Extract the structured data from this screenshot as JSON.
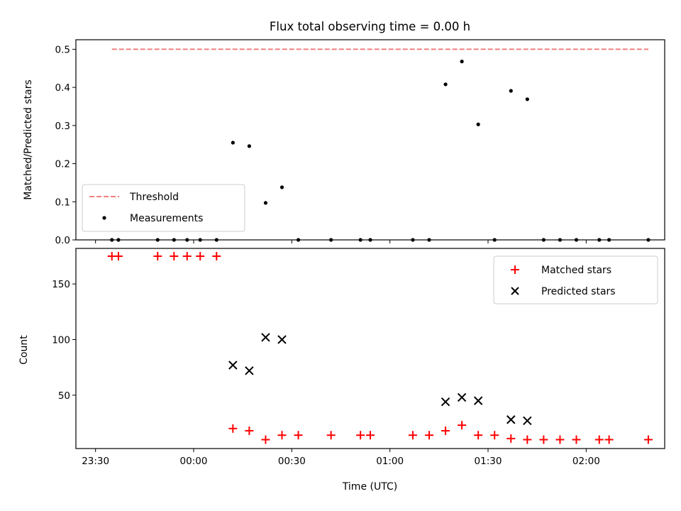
{
  "chart_data": [
    {
      "type": "scatter",
      "title": "Flux total observing time = 0.00 h",
      "xlabel": "",
      "ylabel": "Matched/Predicted stars",
      "ylim": [
        0,
        0.525
      ],
      "yticks": [
        0.0,
        0.1,
        0.2,
        0.3,
        0.4,
        0.5
      ],
      "ytick_labels": [
        "0.0",
        "0.1",
        "0.2",
        "0.3",
        "0.4",
        "0.5"
      ],
      "xaxis_unit": "minutes relative to 00:00 UTC",
      "xlim": [
        -36,
        144
      ],
      "legend": "lower-left",
      "series": [
        {
          "name": "Threshold",
          "kind": "line",
          "style": "dashed",
          "color": "#f08080",
          "x": [
            -25,
            139
          ],
          "y": [
            0.5,
            0.5
          ]
        },
        {
          "name": "Measurements",
          "kind": "scatter",
          "color": "#000000",
          "x": [
            -25,
            -23,
            -11,
            -6,
            -2,
            2,
            7,
            12,
            17,
            22,
            27,
            32,
            42,
            51,
            54,
            67,
            72,
            77,
            82,
            87,
            92,
            97,
            102,
            107,
            112,
            117,
            124,
            127,
            139
          ],
          "y": [
            0,
            0,
            0,
            0,
            0,
            0,
            0,
            0.255,
            0.246,
            0.097,
            0.138,
            0,
            0,
            0,
            0,
            0,
            0,
            0.408,
            0.468,
            0.303,
            0,
            0.391,
            0.369,
            0,
            0,
            0,
            0,
            0,
            0
          ]
        }
      ]
    },
    {
      "type": "scatter",
      "title": "",
      "xlabel": "Time (UTC)",
      "ylabel": "Count",
      "ylim": [
        2,
        182
      ],
      "yticks": [
        50,
        100,
        150
      ],
      "ytick_labels": [
        "50",
        "100",
        "150"
      ],
      "xaxis_unit": "minutes relative to 00:00 UTC",
      "xlim": [
        -36,
        144
      ],
      "xticks": [
        -30,
        0,
        30,
        60,
        90,
        120
      ],
      "xtick_labels": [
        "23:30",
        "00:00",
        "00:30",
        "01:00",
        "01:30",
        "02:00"
      ],
      "legend": "top-right",
      "series": [
        {
          "name": "Matched stars",
          "marker": "+",
          "color": "#ff0000",
          "x": [
            -25,
            -23,
            -11,
            -6,
            -2,
            2,
            7,
            12,
            17,
            22,
            27,
            32,
            42,
            51,
            54,
            67,
            72,
            77,
            82,
            87,
            92,
            97,
            102,
            107,
            112,
            117,
            124,
            127,
            139
          ],
          "y": [
            175,
            175,
            175,
            175,
            175,
            175,
            175,
            20,
            18,
            10,
            14,
            14,
            14,
            14,
            14,
            14,
            14,
            18,
            23,
            14,
            14,
            11,
            10,
            10,
            10,
            10,
            10,
            10,
            10
          ]
        },
        {
          "name": "Predicted stars",
          "marker": "x",
          "color": "#000000",
          "x": [
            12,
            17,
            22,
            27,
            77,
            82,
            87,
            97,
            102
          ],
          "y": [
            77,
            72,
            102,
            100,
            44,
            48,
            45,
            28,
            27
          ]
        }
      ]
    }
  ]
}
